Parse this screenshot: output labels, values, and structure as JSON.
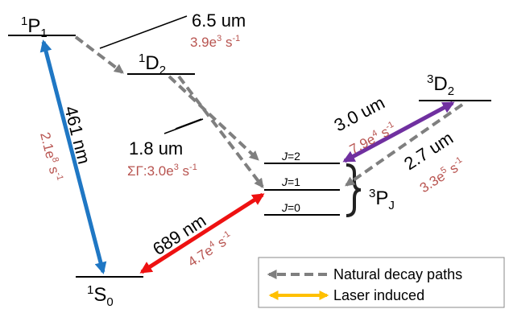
{
  "colors": {
    "level": "#000000",
    "decay": "#7f7f7f",
    "rate_text": "#b85450",
    "blue_laser": "#1f77c4",
    "red_laser": "#ee1111",
    "purple_laser": "#7030a0",
    "laser_legend": "#ffc000"
  },
  "levels": {
    "p1": {
      "main": "P",
      "sup": "1",
      "sub": "1"
    },
    "d2_singlet": {
      "main": "D",
      "sup": "1",
      "sub": "2"
    },
    "d2_triplet": {
      "main": "D",
      "sup": "3",
      "sub": "2"
    },
    "s0": {
      "main": "S",
      "sup": "1",
      "sub": "0"
    },
    "pj": {
      "main": "P",
      "sup": "3",
      "sub": "J"
    },
    "j2": {
      "j": "J",
      "eq": "=2"
    },
    "j1": {
      "j": "J",
      "eq": "=1"
    },
    "j0": {
      "j": "J",
      "eq": "=0"
    }
  },
  "transitions": {
    "p1_d2": {
      "wavelength": "6.5 um",
      "rate_base": "3.9e",
      "rate_exp": "3",
      "rate_unit": " s",
      "rate_unit_exp": "-1"
    },
    "d2_p": {
      "wavelength": "1.8 um",
      "rate_base": "ΣΓ:3.0e",
      "rate_exp": "3",
      "rate_unit": " s",
      "rate_unit_exp": "-1"
    },
    "blue": {
      "wavelength": "461 nm",
      "rate_base": "2.1e",
      "rate_exp": "8",
      "rate_unit": " s",
      "rate_unit_exp": "-1"
    },
    "red": {
      "wavelength": "689 nm",
      "rate_base": "4.7e",
      "rate_exp": "4",
      "rate_unit": " s",
      "rate_unit_exp": "-1"
    },
    "purple": {
      "wavelength": "3.0 um",
      "rate_base": "7.9e",
      "rate_exp": "4",
      "rate_unit": " s",
      "rate_unit_exp": "-1"
    },
    "triplet_decay": {
      "wavelength": "2.7 um",
      "rate_base": "3.3e",
      "rate_exp": "5",
      "rate_unit": " s",
      "rate_unit_exp": "-1"
    }
  },
  "legend": {
    "decay_label": "Natural decay paths",
    "laser_label": "Laser induced"
  }
}
